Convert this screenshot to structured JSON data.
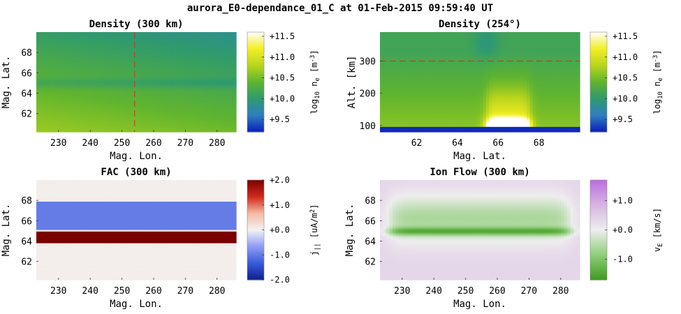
{
  "figure": {
    "title": "aurora_E0-dependance_01_C at 01-Feb-2015 09:59:40 UT"
  },
  "colors": {
    "viridis_like": [
      "#0a1fb8",
      "#2e7fc0",
      "#2f9a6e",
      "#5fb42f",
      "#b9d51b",
      "#f2ef23",
      "#ffffff"
    ],
    "diverging": [
      "#0d1f8c",
      "#3a5bd9",
      "#8f9cf5",
      "#f3f3f3",
      "#f4b9a3",
      "#d0281c",
      "#7b0000"
    ],
    "purple_green": [
      "#3f9a1f",
      "#8fce7a",
      "#eeeeee",
      "#d8b4e3",
      "#bb6ee0"
    ],
    "marker_line": "#cc3322"
  },
  "chart_data": [
    {
      "id": "density_300km",
      "type": "heatmap",
      "title": "Density (300 km)",
      "xlabel": "Mag. Lon.",
      "ylabel": "Mag. Lat.",
      "xlim": [
        223,
        286
      ],
      "ylim": [
        60.2,
        70
      ],
      "xticks": [
        230,
        240,
        250,
        260,
        270,
        280
      ],
      "yticks": [
        62,
        64,
        66,
        68
      ],
      "marker_x": 254,
      "colorbar": {
        "label": "log10 ne [m-3]",
        "label_main": "log",
        "label_sub": "10",
        "label_rest": " n",
        "label_sub2": "e",
        "label_unit": " [m",
        "label_sup": "-3",
        "label_end": "]",
        "min": 9.2,
        "max": 11.6,
        "ticks": [
          9.5,
          10.0,
          10.5,
          11.0,
          11.5
        ],
        "tick_labels": [
          "+9.5",
          "+10.0",
          "+10.5",
          "+11.0",
          "+11.5"
        ]
      },
      "field_note": "gradient: ~10.7 low-lat/west to ~10.0 high-lat/east; dip band near lat 65"
    },
    {
      "id": "density_254deg",
      "type": "heatmap",
      "title": "Density (254°)",
      "xlabel": "Mag. Lat.",
      "ylabel": "Alt. [km]",
      "xlim": [
        60.2,
        70
      ],
      "ylim": [
        80,
        390
      ],
      "xticks": [
        62,
        64,
        66,
        68
      ],
      "yticks": [
        100,
        200,
        300
      ],
      "marker_y": 300,
      "colorbar": {
        "label": "log10 ne [m-3]",
        "label_main": "log",
        "label_sub": "10",
        "label_rest": " n",
        "label_sub2": "e",
        "label_unit": " [m",
        "label_sup": "-3",
        "label_end": "]",
        "min": 9.2,
        "max": 11.6,
        "ticks": [
          9.5,
          10.0,
          10.5,
          11.0,
          11.5
        ],
        "tick_labels": [
          "+9.5",
          "+10.0",
          "+10.5",
          "+11.0",
          "+11.5"
        ]
      },
      "field_note": "aurora enhancement between lat 65.5 and 67.5, max near 100 km"
    },
    {
      "id": "fac_300km",
      "type": "heatmap",
      "title": "FAC (300 km)",
      "xlabel": "Mag. Lon.",
      "ylabel": "Mag. Lat.",
      "xlim": [
        223,
        286
      ],
      "ylim": [
        60.2,
        70
      ],
      "xticks": [
        230,
        240,
        250,
        260,
        270,
        280
      ],
      "yticks": [
        62,
        64,
        66,
        68
      ],
      "colorbar": {
        "label": "j|| [uA/m2]",
        "label_main": "j",
        "label_sub": "||",
        "label_unit": " [uA/m",
        "label_sup": "2",
        "label_end": "]",
        "min": -2.0,
        "max": 2.0,
        "ticks": [
          -2.0,
          -1.0,
          0.0,
          1.0,
          2.0
        ],
        "tick_labels": [
          "-2.0",
          "-1.0",
          "+0.0",
          "+1.0",
          "+2.0"
        ]
      },
      "bands": [
        {
          "lat_min": 65.1,
          "lat_max": 67.9,
          "value": -1.0
        },
        {
          "lat_min": 63.8,
          "lat_max": 65.0,
          "value": 2.0
        }
      ]
    },
    {
      "id": "ionflow_300km",
      "type": "heatmap",
      "title": "Ion Flow (300 km)",
      "xlabel": "Mag. Lon.",
      "ylabel": "Mag. Lat.",
      "xlim": [
        223,
        286
      ],
      "ylim": [
        60.2,
        70
      ],
      "xticks": [
        230,
        240,
        250,
        260,
        270,
        280
      ],
      "yticks": [
        62,
        64,
        66,
        68
      ],
      "colorbar": {
        "label": "vE [km/s]",
        "label_main": "v",
        "label_sub": "E",
        "label_unit": " [km/s]",
        "min": -1.7,
        "max": 1.7,
        "ticks": [
          -1.0,
          0.0,
          1.0
        ],
        "tick_labels": [
          "-1.0",
          "+0.0",
          "+1.0"
        ]
      },
      "field_note": "strong negative (green) band at lat 65, weak positive elsewhere"
    }
  ]
}
